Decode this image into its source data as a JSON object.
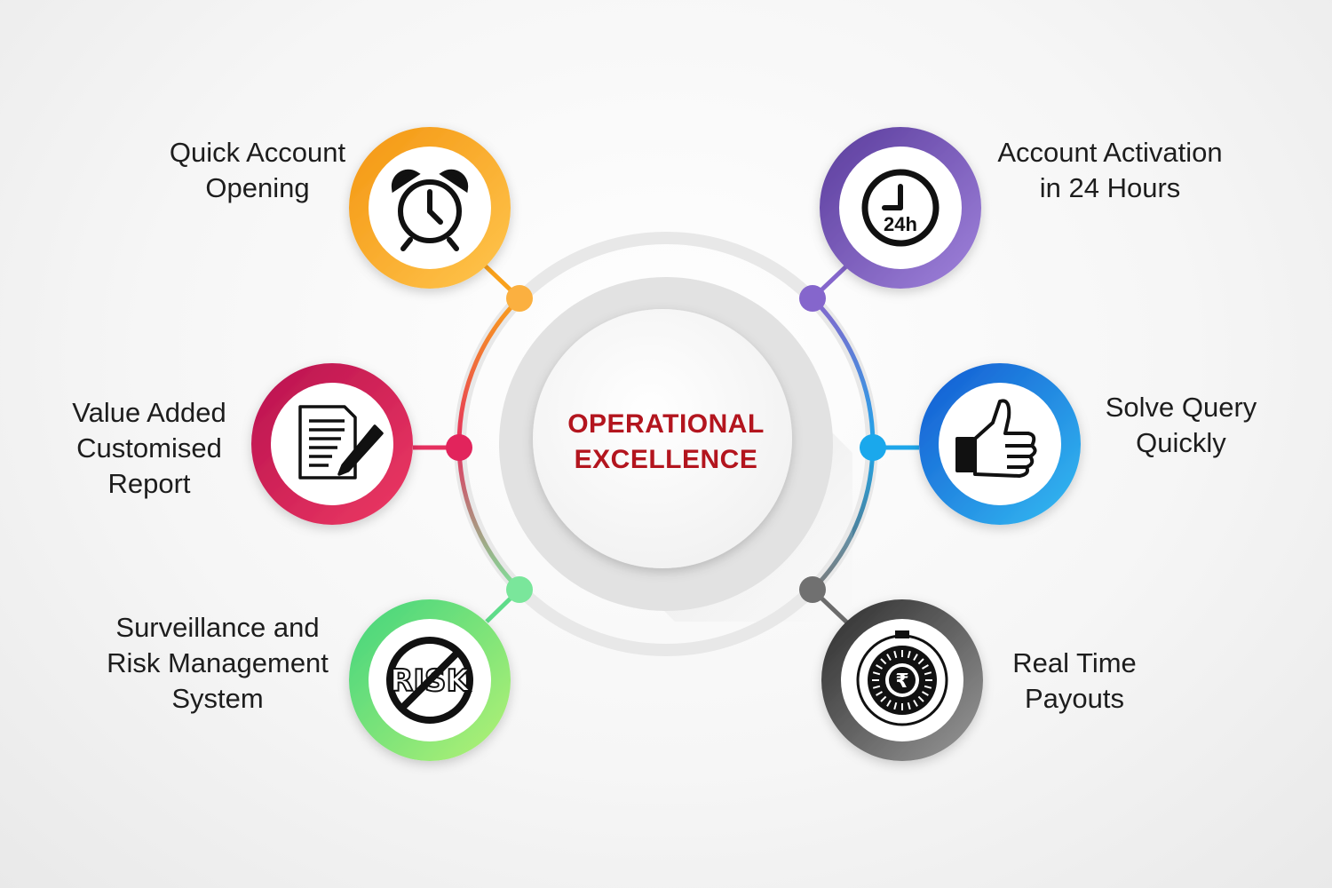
{
  "center": {
    "title_line1": "OPERATIONAL",
    "title_line2": "EXCELLENCE",
    "title_color": "#b3151e"
  },
  "nodes": [
    {
      "id": "quick-account-opening",
      "line1": "Quick Account",
      "line2": "Opening",
      "icon": "alarm-clock-icon",
      "color_start": "#f9a11b",
      "color_end": "#ffc247"
    },
    {
      "id": "value-added-report",
      "line1": "Value Added",
      "line2": "Customised",
      "line3": "Report",
      "icon": "document-pen-icon",
      "color_start": "#c2185b",
      "color_end": "#e5305f"
    },
    {
      "id": "surveillance-risk",
      "line1": "Surveillance and",
      "line2": "Risk Management",
      "line3": "System",
      "icon": "no-risk-icon",
      "icon_text": "RISK",
      "color_start": "#4ad882",
      "color_end": "#a5f07a"
    },
    {
      "id": "account-activation",
      "line1": "Account Activation",
      "line2": "in 24 Hours",
      "icon": "clock-24h-icon",
      "icon_text": "24h",
      "color_start": "#6a4ba8",
      "color_end": "#9a79d6"
    },
    {
      "id": "solve-query",
      "line1": "Solve Query",
      "line2": "Quickly",
      "icon": "thumbs-up-icon",
      "color_start": "#1565d8",
      "color_end": "#2fb2f0"
    },
    {
      "id": "real-time-payouts",
      "line1": "Real Time",
      "line2": "Payouts",
      "icon": "rupee-safe-icon",
      "icon_text": "₹",
      "color_start": "#3a3a3a",
      "color_end": "#8a8a8a"
    }
  ]
}
